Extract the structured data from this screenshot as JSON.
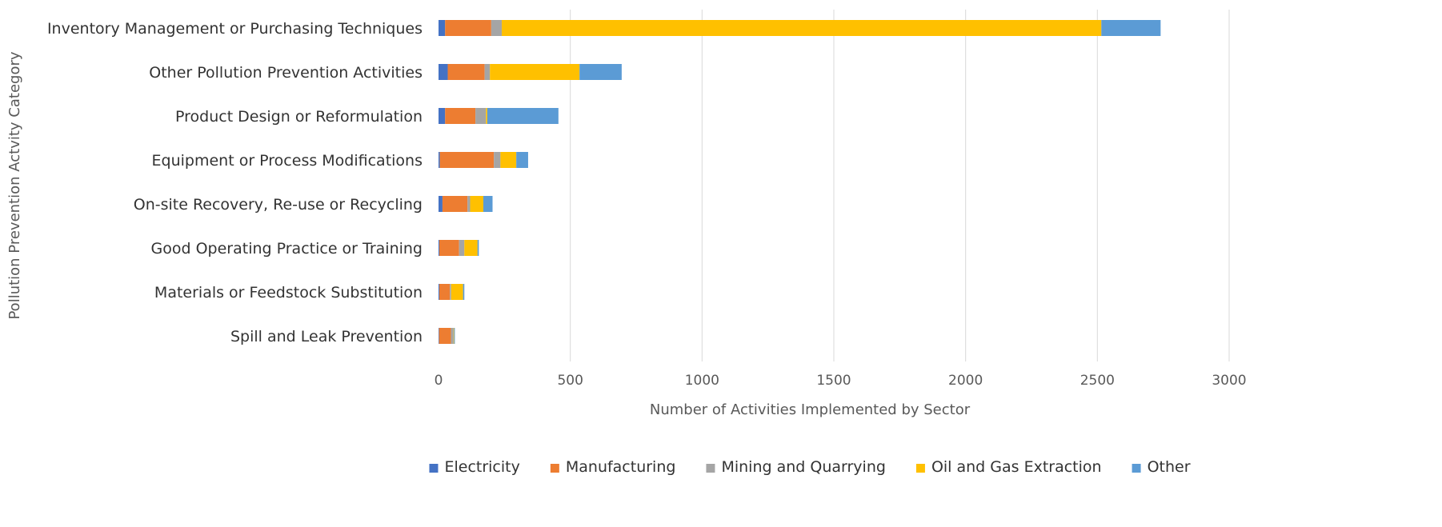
{
  "chart_data": {
    "type": "bar",
    "orientation": "horizontal",
    "stacked": true,
    "title": "",
    "xlabel": "Number of Activities Implemented by Sector",
    "ylabel": "Pollution Prevention Actvity Category",
    "xlim": [
      0,
      3000
    ],
    "xticks": [
      0,
      500,
      1000,
      1500,
      2000,
      2500,
      3000
    ],
    "grid": "vertical",
    "legend_position": "bottom",
    "categories": [
      "Inventory Management or Purchasing Techniques",
      "Other Pollution Prevention Activities",
      "Product Design or Reformulation",
      "Equipment or Process Modifications",
      "On-site Recovery, Re-use or Recycling",
      "Good Operating Practice or Training",
      "Materials or Feedstock Substitution",
      "Spill and Leak Prevention"
    ],
    "series": [
      {
        "name": "Electricity",
        "color": "#4472c4",
        "values": [
          25,
          35,
          25,
          5,
          15,
          3,
          3,
          2
        ]
      },
      {
        "name": "Manufacturing",
        "color": "#ed7d31",
        "values": [
          175,
          140,
          115,
          205,
          95,
          75,
          40,
          45
        ]
      },
      {
        "name": "Mining and Quarrying",
        "color": "#a5a5a5",
        "values": [
          40,
          20,
          40,
          25,
          10,
          20,
          5,
          10
        ]
      },
      {
        "name": "Oil and Gas Extraction",
        "color": "#ffc000",
        "values": [
          2275,
          340,
          5,
          60,
          50,
          50,
          45,
          2
        ]
      },
      {
        "name": "Other",
        "color": "#5b9bd5",
        "values": [
          225,
          160,
          270,
          45,
          35,
          5,
          5,
          3
        ]
      }
    ]
  }
}
